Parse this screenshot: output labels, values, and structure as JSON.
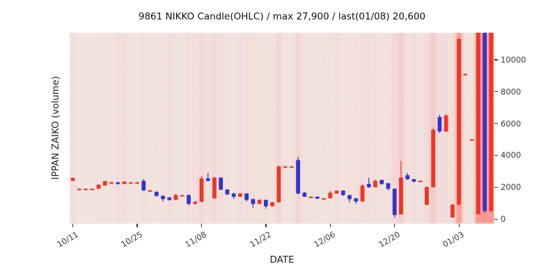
{
  "chart_data": {
    "type": "candlestick",
    "title": "9861 NIKKO Candle(OHLC) / max 27,900 / last(01/08) 20,600",
    "xlabel": "DATE",
    "ylabel": "IPPAN ZAIKO (volume)",
    "ylim": [
      -300,
      11700
    ],
    "yticks": [
      0,
      2000,
      4000,
      6000,
      8000,
      10000
    ],
    "xticks": [
      {
        "index": 0,
        "label": "10/11"
      },
      {
        "index": 10,
        "label": "10/25"
      },
      {
        "index": 20,
        "label": "11/08"
      },
      {
        "index": 30,
        "label": "11/22"
      },
      {
        "index": 40,
        "label": "12/06"
      },
      {
        "index": 50,
        "label": "12/20"
      },
      {
        "index": 60,
        "label": "01/03"
      }
    ],
    "legend": "none",
    "grid": "faint white dotted vertical lines per day",
    "colors": {
      "up": "#f03524",
      "down": "#3333cc",
      "plot_bg": "#f1ebeb",
      "stripe": "#ff3b28",
      "tick_text": "#3a3a3a",
      "title_text": "#111111"
    },
    "max_value": 27900,
    "last_date": "01/08",
    "last_value": 20600,
    "candles": [
      {
        "date": "10/11",
        "open": 2400,
        "high": 2600,
        "low": 2380,
        "close": 2580,
        "color": "red"
      },
      {
        "date": "10/12",
        "open": 1900,
        "high": 1930,
        "low": 1870,
        "close": 1900,
        "color": "red"
      },
      {
        "date": "10/13",
        "open": 1900,
        "high": 1930,
        "low": 1870,
        "close": 1900,
        "color": "red"
      },
      {
        "date": "10/14",
        "open": 1900,
        "high": 1930,
        "low": 1870,
        "close": 1900,
        "color": "red"
      },
      {
        "date": "10/15",
        "open": 1900,
        "high": 2180,
        "low": 1880,
        "close": 2150,
        "color": "red"
      },
      {
        "date": "10/18",
        "open": 2100,
        "high": 2400,
        "low": 2080,
        "close": 2380,
        "color": "red"
      },
      {
        "date": "10/19",
        "open": 2300,
        "high": 2340,
        "low": 2270,
        "close": 2300,
        "color": "red"
      },
      {
        "date": "10/20",
        "open": 2300,
        "high": 2350,
        "low": 2150,
        "close": 2200,
        "color": "blue"
      },
      {
        "date": "10/21",
        "open": 2200,
        "high": 2380,
        "low": 2180,
        "close": 2350,
        "color": "red"
      },
      {
        "date": "10/22",
        "open": 2300,
        "high": 2340,
        "low": 2270,
        "close": 2300,
        "color": "red"
      },
      {
        "date": "10/25",
        "open": 2300,
        "high": 2340,
        "low": 2270,
        "close": 2300,
        "color": "red"
      },
      {
        "date": "10/26",
        "open": 2400,
        "high": 2500,
        "low": 1750,
        "close": 1800,
        "color": "blue"
      },
      {
        "date": "10/27",
        "open": 1800,
        "high": 1840,
        "low": 1770,
        "close": 1800,
        "color": "red"
      },
      {
        "date": "10/28",
        "open": 1700,
        "high": 1750,
        "low": 1400,
        "close": 1450,
        "color": "blue"
      },
      {
        "date": "10/29",
        "open": 1450,
        "high": 1500,
        "low": 1100,
        "close": 1250,
        "color": "blue"
      },
      {
        "date": "11/01",
        "open": 1350,
        "high": 1400,
        "low": 1150,
        "close": 1200,
        "color": "blue"
      },
      {
        "date": "11/02",
        "open": 1200,
        "high": 1600,
        "low": 1180,
        "close": 1500,
        "color": "red"
      },
      {
        "date": "11/03",
        "open": 1500,
        "high": 1540,
        "low": 1470,
        "close": 1500,
        "color": "red"
      },
      {
        "date": "11/04",
        "open": 1500,
        "high": 1550,
        "low": 850,
        "close": 950,
        "color": "blue"
      },
      {
        "date": "11/05",
        "open": 950,
        "high": 1150,
        "low": 900,
        "close": 1080,
        "color": "red"
      },
      {
        "date": "11/08",
        "open": 1080,
        "high": 2700,
        "low": 1050,
        "close": 2550,
        "color": "red"
      },
      {
        "date": "11/09",
        "open": 2550,
        "high": 2900,
        "low": 2350,
        "close": 2400,
        "color": "blue"
      },
      {
        "date": "11/10",
        "open": 1300,
        "high": 2650,
        "low": 1250,
        "close": 2600,
        "color": "red"
      },
      {
        "date": "11/11",
        "open": 2600,
        "high": 2620,
        "low": 1800,
        "close": 1850,
        "color": "blue"
      },
      {
        "date": "11/12",
        "open": 1850,
        "high": 1870,
        "low": 1500,
        "close": 1550,
        "color": "blue"
      },
      {
        "date": "11/15",
        "open": 1600,
        "high": 1650,
        "low": 1250,
        "close": 1400,
        "color": "blue"
      },
      {
        "date": "11/16",
        "open": 1400,
        "high": 1650,
        "low": 1380,
        "close": 1600,
        "color": "red"
      },
      {
        "date": "11/17",
        "open": 1600,
        "high": 1620,
        "low": 1100,
        "close": 1200,
        "color": "blue"
      },
      {
        "date": "11/18",
        "open": 1250,
        "high": 1280,
        "low": 700,
        "close": 950,
        "color": "blue"
      },
      {
        "date": "11/19",
        "open": 950,
        "high": 1250,
        "low": 930,
        "close": 1200,
        "color": "red"
      },
      {
        "date": "11/22",
        "open": 1200,
        "high": 1220,
        "low": 650,
        "close": 800,
        "color": "blue"
      },
      {
        "date": "11/23",
        "open": 800,
        "high": 1100,
        "low": 780,
        "close": 1050,
        "color": "red"
      },
      {
        "date": "11/24",
        "open": 1050,
        "high": 3350,
        "low": 1030,
        "close": 3300,
        "color": "red"
      },
      {
        "date": "11/25",
        "open": 3300,
        "high": 3340,
        "low": 3270,
        "close": 3300,
        "color": "red"
      },
      {
        "date": "11/26",
        "open": 3300,
        "high": 3340,
        "low": 3270,
        "close": 3300,
        "color": "red"
      },
      {
        "date": "11/29",
        "open": 3700,
        "high": 3900,
        "low": 1550,
        "close": 1600,
        "color": "blue"
      },
      {
        "date": "11/30",
        "open": 1650,
        "high": 1700,
        "low": 1380,
        "close": 1400,
        "color": "blue"
      },
      {
        "date": "12/01",
        "open": 1400,
        "high": 1440,
        "low": 1370,
        "close": 1400,
        "color": "red"
      },
      {
        "date": "12/02",
        "open": 1400,
        "high": 1420,
        "low": 1250,
        "close": 1280,
        "color": "blue"
      },
      {
        "date": "12/03",
        "open": 1300,
        "high": 1340,
        "low": 1270,
        "close": 1300,
        "color": "red"
      },
      {
        "date": "12/06",
        "open": 1300,
        "high": 1750,
        "low": 1280,
        "close": 1650,
        "color": "red"
      },
      {
        "date": "12/07",
        "open": 1600,
        "high": 1800,
        "low": 1580,
        "close": 1780,
        "color": "red"
      },
      {
        "date": "12/08",
        "open": 1780,
        "high": 1800,
        "low": 1450,
        "close": 1500,
        "color": "blue"
      },
      {
        "date": "12/09",
        "open": 1500,
        "high": 1520,
        "low": 1050,
        "close": 1250,
        "color": "blue"
      },
      {
        "date": "12/10",
        "open": 1300,
        "high": 1320,
        "low": 950,
        "close": 1100,
        "color": "blue"
      },
      {
        "date": "12/13",
        "open": 1100,
        "high": 2200,
        "low": 1080,
        "close": 2100,
        "color": "red"
      },
      {
        "date": "12/14",
        "open": 2200,
        "high": 2600,
        "low": 1950,
        "close": 2000,
        "color": "blue"
      },
      {
        "date": "12/15",
        "open": 2000,
        "high": 2500,
        "low": 1980,
        "close": 2400,
        "color": "red"
      },
      {
        "date": "12/16",
        "open": 2450,
        "high": 2470,
        "low": 2150,
        "close": 2200,
        "color": "blue"
      },
      {
        "date": "12/17",
        "open": 2250,
        "high": 2270,
        "low": 1800,
        "close": 1900,
        "color": "blue"
      },
      {
        "date": "12/20",
        "open": 1900,
        "high": 1920,
        "low": 100,
        "close": 250,
        "color": "blue"
      },
      {
        "date": "12/21",
        "open": 300,
        "high": 3650,
        "low": 280,
        "close": 2600,
        "color": "red"
      },
      {
        "date": "12/22",
        "open": 2750,
        "high": 2900,
        "low": 2450,
        "close": 2500,
        "color": "blue"
      },
      {
        "date": "12/23",
        "open": 2500,
        "high": 2520,
        "low": 2300,
        "close": 2350,
        "color": "blue"
      },
      {
        "date": "12/24",
        "open": 2400,
        "high": 2440,
        "low": 2370,
        "close": 2400,
        "color": "red"
      },
      {
        "date": "12/27",
        "open": 900,
        "high": 2050,
        "low": 850,
        "close": 2000,
        "color": "red"
      },
      {
        "date": "12/28",
        "open": 2000,
        "high": 5750,
        "low": 1980,
        "close": 5600,
        "color": "red"
      },
      {
        "date": "12/29",
        "open": 6400,
        "high": 6550,
        "low": 5400,
        "close": 5500,
        "color": "blue"
      },
      {
        "date": "12/30",
        "open": 5500,
        "high": 6600,
        "low": 5450,
        "close": 6500,
        "color": "red"
      },
      {
        "date": "12/31",
        "open": 100,
        "high": 950,
        "low": 50,
        "close": 900,
        "color": "red"
      },
      {
        "date": "01/03",
        "open": 900,
        "high": 11400,
        "low": 850,
        "close": 11300,
        "color": "red"
      },
      {
        "date": "01/04",
        "open": 9100,
        "high": 9150,
        "low": 9050,
        "close": 9100,
        "color": "red"
      },
      {
        "date": "01/05",
        "open": 5000,
        "high": 5050,
        "low": 4950,
        "close": 5000,
        "color": "red"
      },
      {
        "date": "01/06",
        "open": 300,
        "high": 27900,
        "low": 300,
        "close": 27900,
        "color": "red"
      },
      {
        "date": "01/07",
        "open": 27900,
        "high": 27900,
        "low": 400,
        "close": 500,
        "color": "blue"
      },
      {
        "date": "01/08",
        "open": 500,
        "high": 20600,
        "low": 450,
        "close": 20600,
        "color": "red"
      }
    ]
  }
}
